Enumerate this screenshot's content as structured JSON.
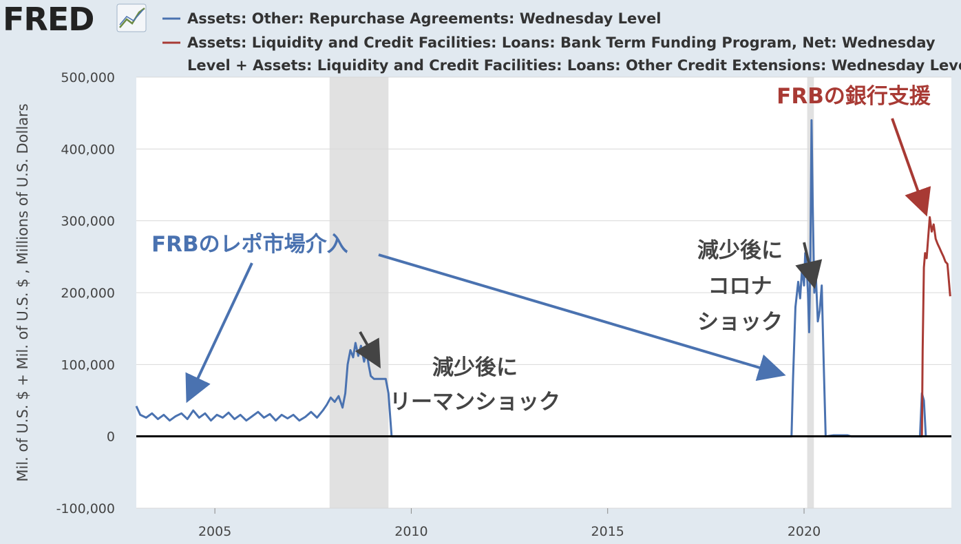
{
  "brand": {
    "logo_text": "FRED",
    "logo_icon": "line-graph-icon"
  },
  "legend": [
    {
      "color": "#4a72b0",
      "text": "Assets: Other: Repurchase Agreements: Wednesday Level"
    },
    {
      "color": "#a83a34",
      "text_line1": "Assets: Liquidity and Credit Facilities: Loans: Bank Term Funding Program, Net: Wednesday",
      "text_line2": "Level + Assets: Liquidity and Credit Facilities: Loans: Other Credit Extensions: Wednesday Leve"
    }
  ],
  "annotations": {
    "repo": "FRBのレポ市場介入",
    "lehman_line1": "減少後に",
    "lehman_line2": "リーマンショック",
    "corona_line1": "減少後に",
    "corona_line2": "コロナ",
    "corona_line3": "ショック",
    "bank": "FRBの銀行支援"
  },
  "chart_data": {
    "type": "line",
    "ylabel": "Mil. of U.S. $ + Mil. of U.S. $ , Millions of U.S. Dollars",
    "xlim": [
      2003.0,
      2023.75
    ],
    "ylim": [
      -100000,
      500000
    ],
    "y_ticks": [
      -100000,
      0,
      100000,
      200000,
      300000,
      400000,
      500000
    ],
    "y_tick_labels": [
      "-100,000",
      "0",
      "100,000",
      "200,000",
      "300,000",
      "400,000",
      "500,000"
    ],
    "x_ticks": [
      2005,
      2010,
      2015,
      2020
    ],
    "x_tick_labels": [
      "2005",
      "2010",
      "2015",
      "2020"
    ],
    "grid": true,
    "recessions": [
      [
        2007.92,
        2009.42
      ],
      [
        2020.08,
        2020.25
      ]
    ],
    "series": [
      {
        "name": "Assets: Other: Repurchase Agreements: Wednesday Level",
        "color": "#4a72b0",
        "points": [
          [
            2003.0,
            42000
          ],
          [
            2003.1,
            30000
          ],
          [
            2003.25,
            26000
          ],
          [
            2003.4,
            32000
          ],
          [
            2003.55,
            24000
          ],
          [
            2003.7,
            30000
          ],
          [
            2003.85,
            22000
          ],
          [
            2004.0,
            28000
          ],
          [
            2004.15,
            32000
          ],
          [
            2004.3,
            24000
          ],
          [
            2004.45,
            36000
          ],
          [
            2004.6,
            26000
          ],
          [
            2004.75,
            32000
          ],
          [
            2004.9,
            22000
          ],
          [
            2005.05,
            30000
          ],
          [
            2005.2,
            26000
          ],
          [
            2005.35,
            33000
          ],
          [
            2005.5,
            24000
          ],
          [
            2005.65,
            30000
          ],
          [
            2005.8,
            22000
          ],
          [
            2005.95,
            28000
          ],
          [
            2006.1,
            34000
          ],
          [
            2006.25,
            26000
          ],
          [
            2006.4,
            31000
          ],
          [
            2006.55,
            22000
          ],
          [
            2006.7,
            30000
          ],
          [
            2006.85,
            25000
          ],
          [
            2007.0,
            30000
          ],
          [
            2007.15,
            22000
          ],
          [
            2007.3,
            27000
          ],
          [
            2007.45,
            34000
          ],
          [
            2007.6,
            26000
          ],
          [
            2007.75,
            36000
          ],
          [
            2007.85,
            44000
          ],
          [
            2007.95,
            54000
          ],
          [
            2008.05,
            48000
          ],
          [
            2008.15,
            56000
          ],
          [
            2008.25,
            40000
          ],
          [
            2008.32,
            60000
          ],
          [
            2008.38,
            100000
          ],
          [
            2008.45,
            120000
          ],
          [
            2008.52,
            110000
          ],
          [
            2008.58,
            130000
          ],
          [
            2008.65,
            112000
          ],
          [
            2008.72,
            126000
          ],
          [
            2008.8,
            104000
          ],
          [
            2008.86,
            118000
          ],
          [
            2008.92,
            98000
          ],
          [
            2008.97,
            84000
          ],
          [
            2009.05,
            80000
          ],
          [
            2009.35,
            80000
          ],
          [
            2009.42,
            60000
          ],
          [
            2009.5,
            0
          ],
          [
            2019.68,
            0
          ],
          [
            2019.72,
            80000
          ],
          [
            2019.78,
            180000
          ],
          [
            2019.85,
            215000
          ],
          [
            2019.9,
            192000
          ],
          [
            2019.95,
            235000
          ],
          [
            2020.0,
            210000
          ],
          [
            2020.03,
            255000
          ],
          [
            2020.07,
            230000
          ],
          [
            2020.1,
            200000
          ],
          [
            2020.13,
            145000
          ],
          [
            2020.16,
            250000
          ],
          [
            2020.19,
            440000
          ],
          [
            2020.22,
            320000
          ],
          [
            2020.26,
            200000
          ],
          [
            2020.3,
            225000
          ],
          [
            2020.35,
            160000
          ],
          [
            2020.4,
            175000
          ],
          [
            2020.45,
            210000
          ],
          [
            2020.5,
            100000
          ],
          [
            2020.55,
            0
          ],
          [
            2020.75,
            1500
          ],
          [
            2021.1,
            1500
          ],
          [
            2021.2,
            0
          ],
          [
            2022.95,
            0
          ],
          [
            2023.0,
            60000
          ],
          [
            2023.05,
            50000
          ],
          [
            2023.1,
            0
          ]
        ]
      },
      {
        "name": "Assets: Liquidity and Credit Facilities: Loans: Bank Term Funding Program, Net: Wednesday Level + Assets: Liquidity and Credit Facilities: Loans: Other Credit Extensions: Wednesday Level",
        "color": "#a83a34",
        "points": [
          [
            2022.95,
            0
          ],
          [
            2023.0,
            0
          ],
          [
            2023.02,
            120000
          ],
          [
            2023.05,
            235000
          ],
          [
            2023.08,
            255000
          ],
          [
            2023.12,
            248000
          ],
          [
            2023.15,
            270000
          ],
          [
            2023.2,
            305000
          ],
          [
            2023.25,
            285000
          ],
          [
            2023.3,
            295000
          ],
          [
            2023.35,
            275000
          ],
          [
            2023.4,
            268000
          ],
          [
            2023.45,
            262000
          ],
          [
            2023.5,
            256000
          ],
          [
            2023.55,
            250000
          ],
          [
            2023.6,
            243000
          ],
          [
            2023.65,
            240000
          ],
          [
            2023.72,
            195000
          ]
        ]
      }
    ]
  }
}
